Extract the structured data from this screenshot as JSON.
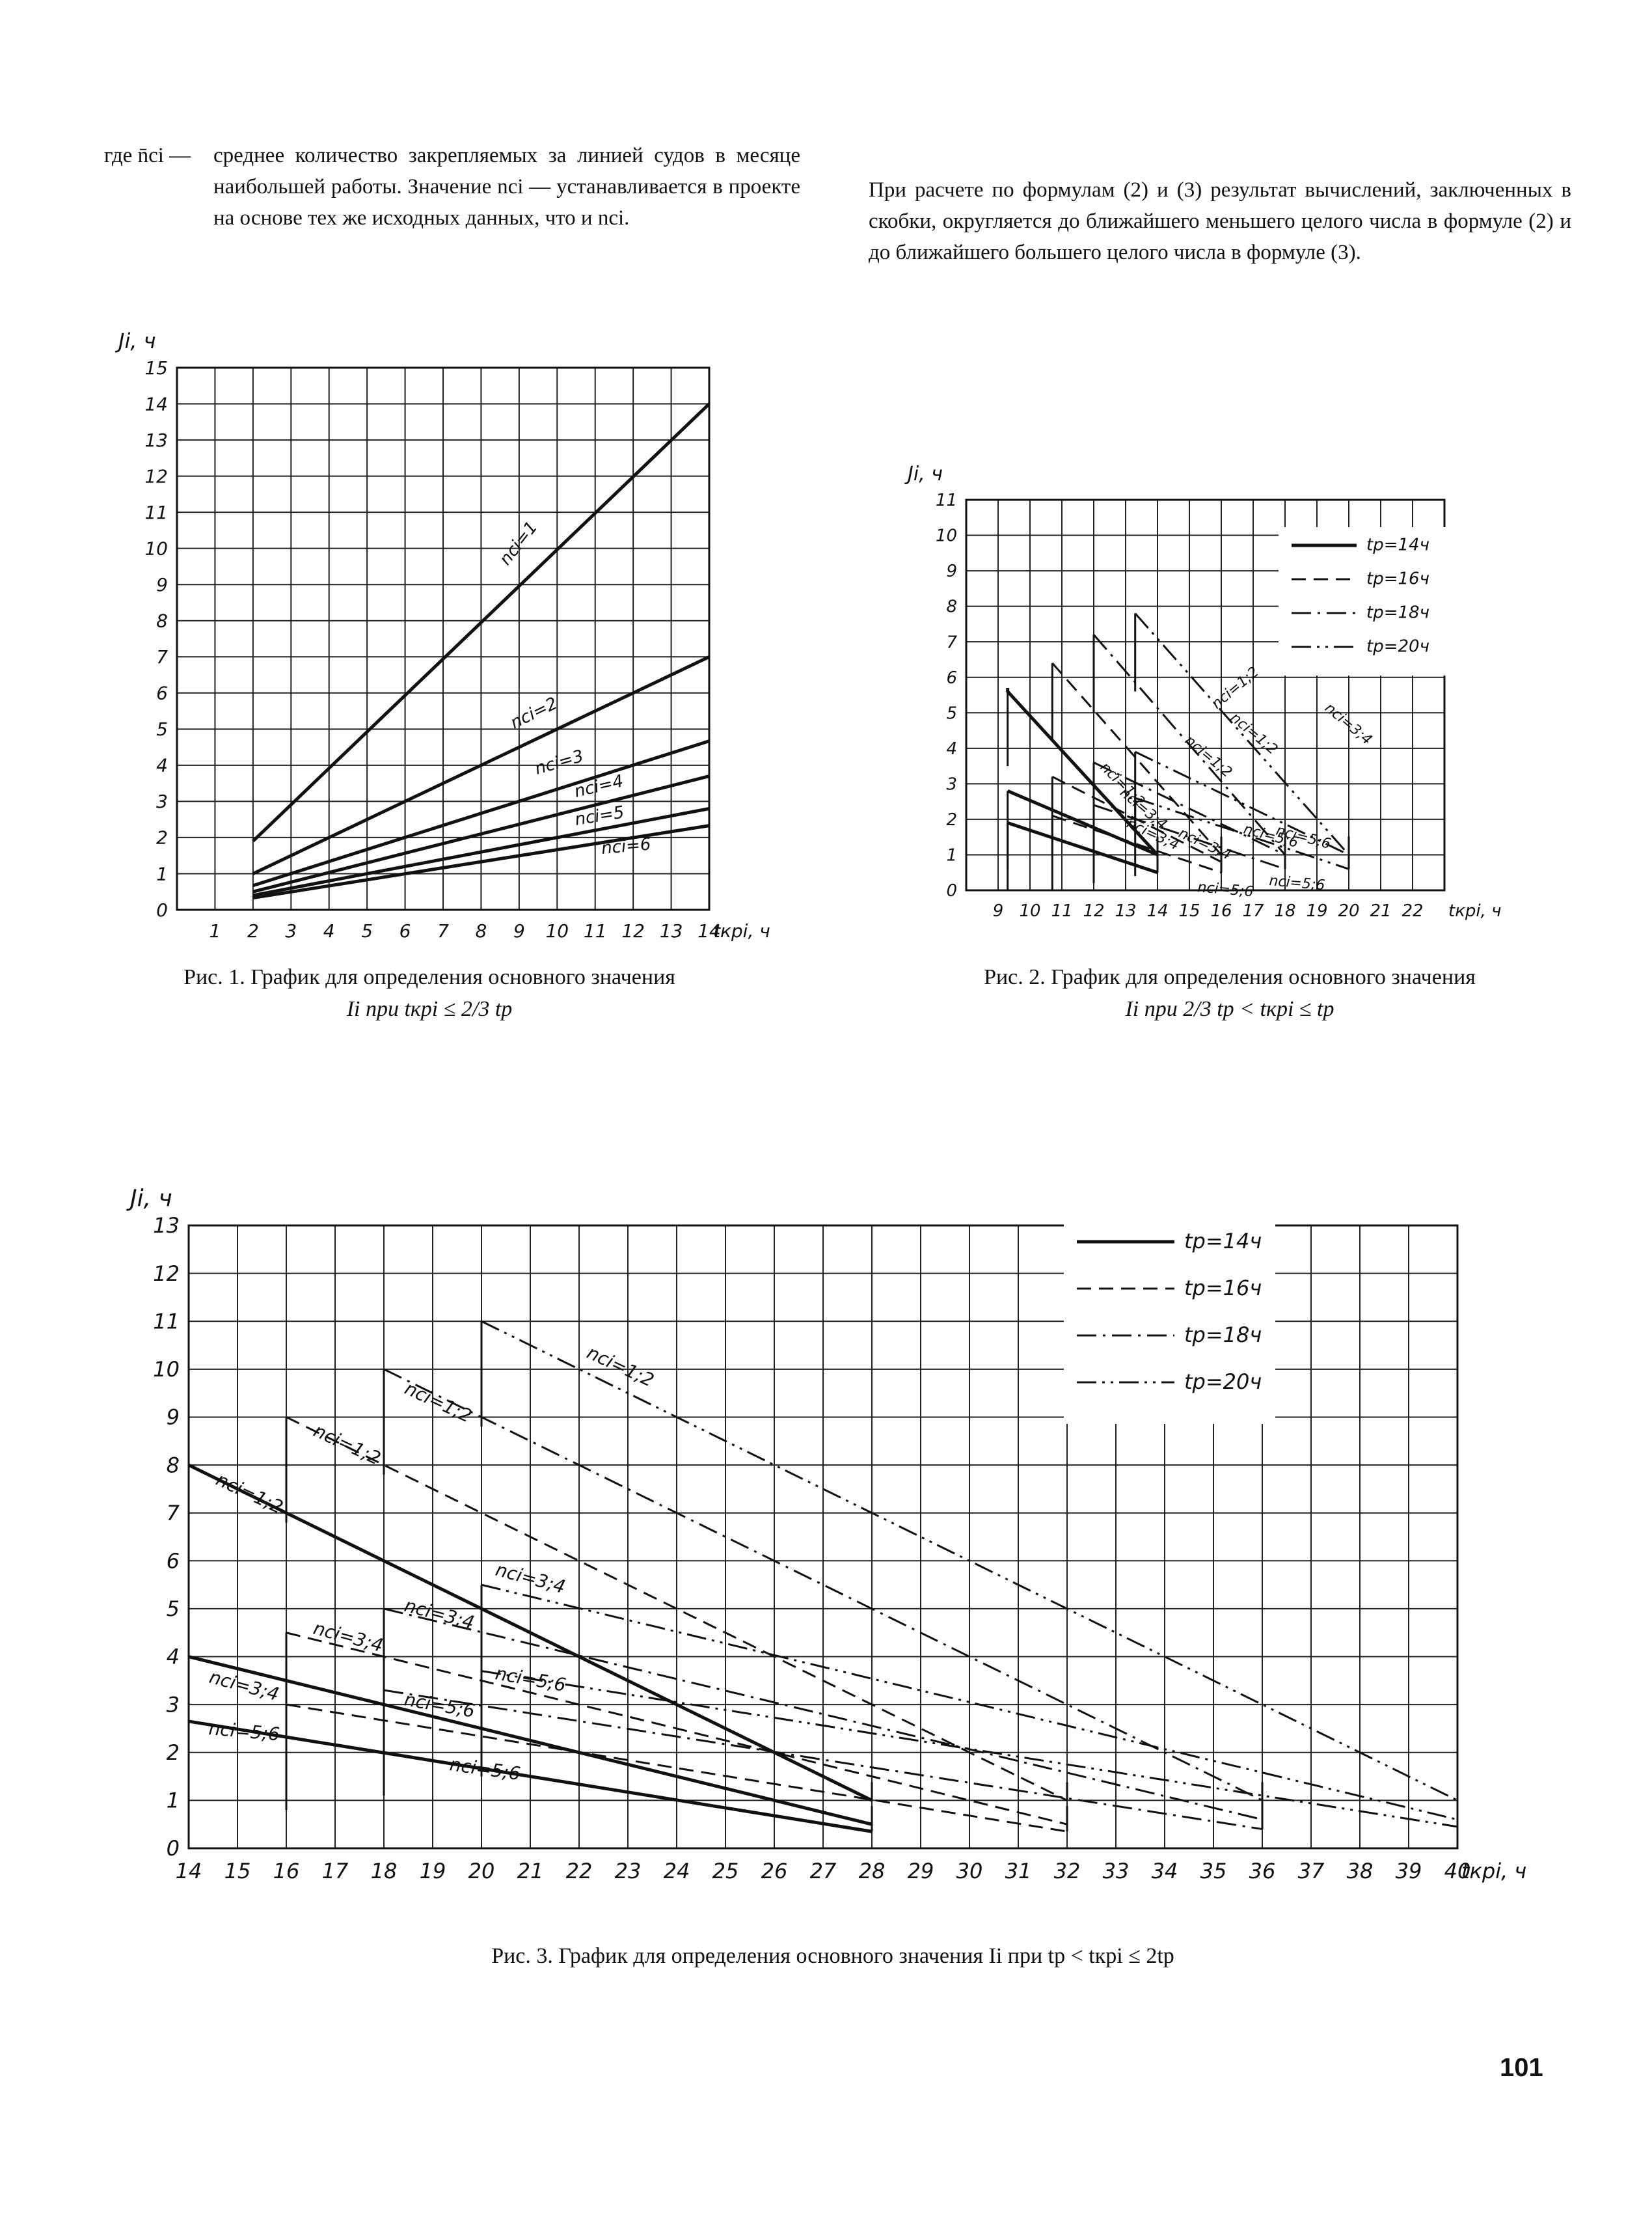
{
  "text": {
    "left_lead": "где n̄ci —",
    "left_body": "среднее количество закрепляемых за линией судов в месяце наибольшей работы. Значение nci — устанавливается в проекте на основе тех же исходных данных, что и nci.",
    "right_body": "При расчете по формулам (2) и (3) результат вычислений, заключенных в скобки, округляется до ближайшего меньшего целого числа в формуле (2) и до ближайшего большего целого числа в формуле (3)."
  },
  "captions": {
    "fig1": "Рис. 1. График для определения основного значения",
    "fig1_formula": "Ii при tкрi ≤ 2/3 tр",
    "fig2": "Рис. 2. График для определения основного значения",
    "fig2_formula": "Ii при 2/3 tр < tкрi ≤ tр",
    "fig3": "Рис. 3. График для определения основного значения Ii при tр < tкрi ≤ 2tр"
  },
  "page_number": "101",
  "chart_data": [
    {
      "id": "fig1",
      "type": "line",
      "ylabel": "Ji, ч",
      "xlabel": "tкрi, ч",
      "xlim": [
        0,
        14
      ],
      "ylim": [
        0,
        15
      ],
      "x_ticks": [
        1,
        2,
        3,
        4,
        5,
        6,
        7,
        8,
        9,
        10,
        11,
        12,
        13,
        14
      ],
      "y_ticks": [
        0,
        1,
        2,
        3,
        4,
        5,
        6,
        7,
        8,
        9,
        10,
        11,
        12,
        13,
        14,
        15
      ],
      "grid": true,
      "series": [
        {
          "name": "nci=1",
          "style": "solid",
          "points": [
            [
              2,
              1.9
            ],
            [
              14,
              14
            ]
          ]
        },
        {
          "name": "nci=2",
          "style": "solid",
          "points": [
            [
              2,
              1
            ],
            [
              14,
              7
            ]
          ]
        },
        {
          "name": "nci=3",
          "style": "solid",
          "points": [
            [
              2,
              0.67
            ],
            [
              14,
              4.67
            ]
          ]
        },
        {
          "name": "nci=4",
          "style": "solid",
          "points": [
            [
              2,
              0.5
            ],
            [
              14,
              3.7
            ]
          ]
        },
        {
          "name": "nci=5",
          "style": "solid",
          "points": [
            [
              2,
              0.4
            ],
            [
              14,
              2.8
            ]
          ]
        },
        {
          "name": "nci=6",
          "style": "solid",
          "points": [
            [
              2,
              0.33
            ],
            [
              14,
              2.33
            ]
          ]
        }
      ]
    },
    {
      "id": "fig2",
      "type": "line",
      "ylabel": "Ji, ч",
      "xlabel": "tкрi, ч",
      "xlim": [
        8,
        23
      ],
      "ylim": [
        0,
        11
      ],
      "x_ticks": [
        9,
        10,
        11,
        12,
        13,
        14,
        15,
        16,
        17,
        18,
        19,
        20,
        21,
        22
      ],
      "y_ticks": [
        0,
        1,
        2,
        3,
        4,
        5,
        6,
        7,
        8,
        9,
        10,
        11
      ],
      "grid": true,
      "legend": {
        "placement": "top-right",
        "entries": [
          "tр=14ч",
          "tр=16ч",
          "tр=18ч",
          "tр=20ч"
        ]
      },
      "series": [
        {
          "name": "tр=14ч nci=1;2",
          "style": "solid",
          "points": [
            [
              9.3,
              5.7
            ],
            [
              9.3,
              5.6
            ],
            [
              14,
              1
            ]
          ]
        },
        {
          "name": "tр=14ч nci=3;4",
          "style": "solid",
          "points": [
            [
              9.3,
              2.8
            ],
            [
              14,
              1
            ]
          ]
        },
        {
          "name": "tр=14ч nci=5;6",
          "style": "solid",
          "points": [
            [
              9.3,
              1.9
            ],
            [
              14,
              0.5
            ]
          ]
        },
        {
          "name": "tр=16ч nci=1;2",
          "style": "dash",
          "points": [
            [
              10.7,
              6.4
            ],
            [
              16,
              1
            ]
          ]
        },
        {
          "name": "tр=16ч nci=3;4",
          "style": "dash",
          "points": [
            [
              10.7,
              3.2
            ],
            [
              16,
              0.8
            ]
          ]
        },
        {
          "name": "tр=16ч nci=5;6",
          "style": "dash",
          "points": [
            [
              10.7,
              2.1
            ],
            [
              16,
              0.5
            ]
          ]
        },
        {
          "name": "tр=18ч nci=1;2",
          "style": "dashdot",
          "points": [
            [
              12,
              7.2
            ],
            [
              18,
              1
            ]
          ]
        },
        {
          "name": "tр=18ч nci=3;4",
          "style": "dashdot",
          "points": [
            [
              12,
              3.6
            ],
            [
              18,
              1
            ]
          ]
        },
        {
          "name": "tр=18ч nci=5;6",
          "style": "dashdot",
          "points": [
            [
              12,
              2.4
            ],
            [
              18,
              0.6
            ]
          ]
        },
        {
          "name": "tр=20ч nci=1;2",
          "style": "dashdotdot",
          "points": [
            [
              13.3,
              7.8
            ],
            [
              20,
              1
            ]
          ]
        },
        {
          "name": "tр=20ч nci=3;4",
          "style": "dashdotdot",
          "points": [
            [
              13.3,
              3.9
            ],
            [
              20,
              1
            ]
          ]
        },
        {
          "name": "tр=20ч nci=5;6",
          "style": "dashdotdot",
          "points": [
            [
              13.3,
              2.6
            ],
            [
              20,
              0.6
            ]
          ]
        }
      ],
      "annotations": [
        "nci=1;2",
        "nci=1;2",
        "nci=1;2",
        "nci=1;2",
        "nci=3;4",
        "nci=3;4",
        "nci=3;4",
        "nci=3;4",
        "nci=5;6",
        "nci=5;6",
        "nci=5;6",
        "nci=5;6"
      ]
    },
    {
      "id": "fig3",
      "type": "line",
      "ylabel": "Ji, ч",
      "xlabel": "tкрi, ч",
      "xlim": [
        14,
        40
      ],
      "ylim": [
        0,
        13
      ],
      "x_ticks": [
        14,
        15,
        16,
        17,
        18,
        19,
        20,
        21,
        22,
        23,
        24,
        25,
        26,
        27,
        28,
        29,
        30,
        31,
        32,
        33,
        34,
        35,
        36,
        37,
        38,
        39,
        40
      ],
      "y_ticks": [
        0,
        1,
        2,
        3,
        4,
        5,
        6,
        7,
        8,
        9,
        10,
        11,
        12,
        13
      ],
      "grid": true,
      "legend": {
        "placement": "top-right",
        "entries": [
          "tр=14ч",
          "tр=16ч",
          "tр=18ч",
          "tр=20ч"
        ]
      },
      "series": [
        {
          "name": "tр=14ч nci=1;2",
          "style": "solid",
          "points": [
            [
              14,
              8
            ],
            [
              28,
              1
            ]
          ]
        },
        {
          "name": "tр=14ч nci=3;4",
          "style": "solid",
          "points": [
            [
              14,
              4
            ],
            [
              28,
              0.5
            ]
          ]
        },
        {
          "name": "tр=14ч nci=5;6",
          "style": "solid",
          "points": [
            [
              14,
              2.65
            ],
            [
              28,
              0.35
            ]
          ]
        },
        {
          "name": "tр=16ч nci=1;2",
          "style": "dash",
          "points": [
            [
              16,
              9
            ],
            [
              32,
              1
            ]
          ]
        },
        {
          "name": "tр=16ч nci=3;4",
          "style": "dash",
          "points": [
            [
              16,
              4.5
            ],
            [
              32,
              0.5
            ]
          ]
        },
        {
          "name": "tр=16ч nci=5;6",
          "style": "dash",
          "points": [
            [
              16,
              3
            ],
            [
              32,
              0.35
            ]
          ]
        },
        {
          "name": "tр=18ч nci=1;2",
          "style": "dashdot",
          "points": [
            [
              18,
              10
            ],
            [
              36,
              1
            ]
          ]
        },
        {
          "name": "tр=18ч nci=3;4",
          "style": "dashdot",
          "points": [
            [
              18,
              5
            ],
            [
              36,
              0.6
            ]
          ]
        },
        {
          "name": "tр=18ч nci=5;6",
          "style": "dashdot",
          "points": [
            [
              18,
              3.3
            ],
            [
              36,
              0.4
            ]
          ]
        },
        {
          "name": "tр=20ч nci=1;2",
          "style": "dashdotdot",
          "points": [
            [
              20,
              11
            ],
            [
              40,
              1
            ]
          ]
        },
        {
          "name": "tр=20ч nci=3;4",
          "style": "dashdotdot",
          "points": [
            [
              20,
              5.5
            ],
            [
              40,
              0.6
            ]
          ]
        },
        {
          "name": "tр=20ч nci=5;6",
          "style": "dashdotdot",
          "points": [
            [
              20,
              3.7
            ],
            [
              40,
              0.45
            ]
          ]
        }
      ],
      "annotations": [
        "nci=1;2",
        "nci=1;2",
        "nci=1;2",
        "nci=1;2",
        "nci=3;4",
        "nci=3;4",
        "nci=3;4",
        "nci=3;4",
        "nci=5;6",
        "nci=5;6",
        "nci=5;6",
        "nci=5;6"
      ]
    }
  ]
}
